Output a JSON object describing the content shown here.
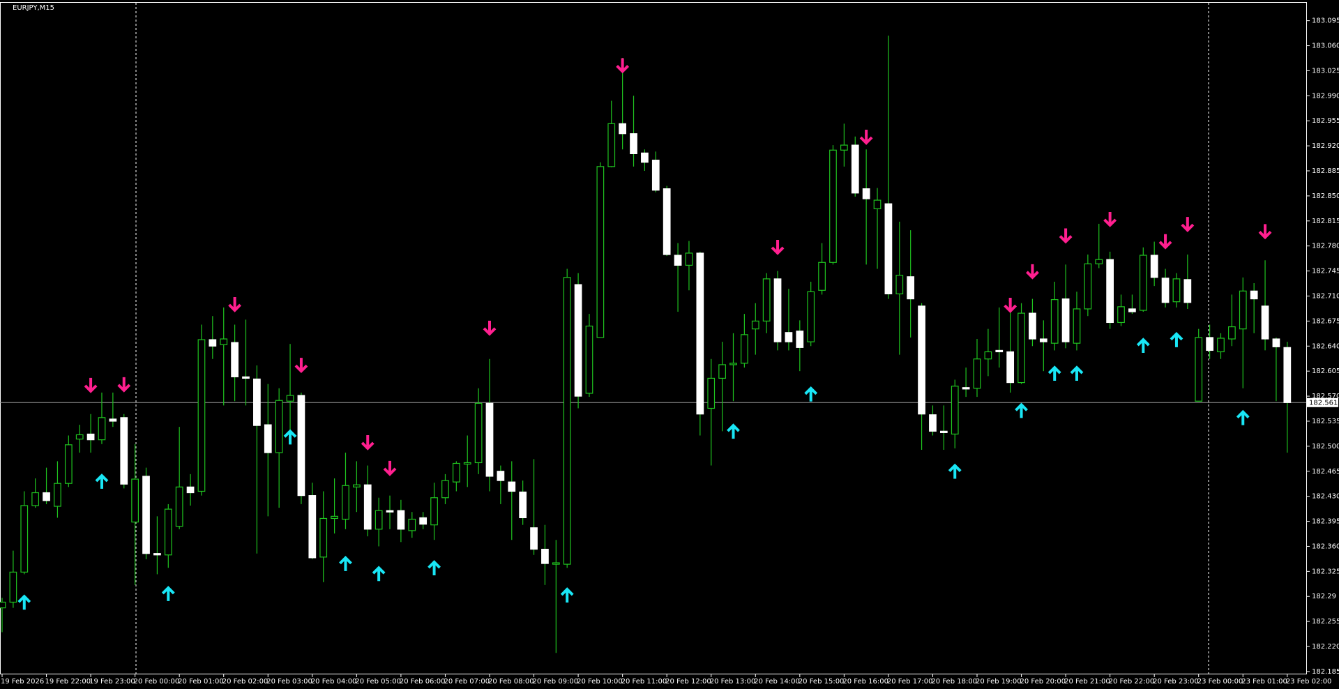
{
  "chart_data": {
    "type": "candlestick",
    "title": "EURJPY,M15",
    "categories": [
      "19 Feb 2026",
      null,
      null,
      null,
      "19 Feb 22:00",
      null,
      null,
      null,
      "19 Feb 23:00",
      null,
      null,
      null,
      "20 Feb 00:00",
      null,
      null,
      null,
      "20 Feb 01:00",
      null,
      null,
      null,
      "20 Feb 02:00",
      null,
      null,
      null,
      "20 Feb 03:00",
      null,
      null,
      null,
      "20 Feb 04:00",
      null,
      null,
      null,
      "20 Feb 05:00",
      null,
      null,
      null,
      "20 Feb 06:00",
      null,
      null,
      null,
      "20 Feb 07:00",
      null,
      null,
      null,
      "20 Feb 08:00",
      null,
      null,
      null,
      "20 Feb 09:00",
      null,
      null,
      null,
      "20 Feb 10:00",
      null,
      null,
      null,
      "20 Feb 11:00",
      null,
      null,
      null,
      "20 Feb 12:00",
      null,
      null,
      null,
      "20 Feb 13:00",
      null,
      null,
      null,
      "20 Feb 14:00",
      null,
      null,
      null,
      "20 Feb 15:00",
      null,
      null,
      null,
      "20 Feb 16:00",
      null,
      null,
      null,
      "20 Feb 17:00",
      null,
      null,
      null,
      "20 Feb 18:00",
      null,
      null,
      null,
      "20 Feb 19:00",
      null,
      null,
      null,
      "20 Feb 20:00",
      null,
      null,
      null,
      "20 Feb 21:00",
      null,
      null,
      null,
      "20 Feb 22:00",
      null,
      null,
      null,
      "20 Feb 23:00",
      null,
      null,
      null,
      "23 Feb 00:00",
      null,
      null,
      null,
      "23 Feb 01:00",
      null,
      null,
      null,
      "23 Feb 02:00"
    ],
    "open": [
      182.274,
      182.282,
      182.324,
      182.417,
      182.435,
      182.416,
      182.448,
      182.51,
      182.517,
      182.509,
      182.538,
      182.54,
      182.394,
      182.458,
      182.35,
      182.348,
      182.388,
      182.443,
      182.437,
      182.649,
      182.642,
      182.645,
      182.597,
      182.594,
      182.53,
      182.491,
      182.563,
      182.571,
      182.431,
      182.345,
      182.399,
      182.398,
      182.443,
      182.446,
      182.384,
      182.41,
      182.41,
      182.382,
      182.4,
      182.39,
      182.428,
      182.45,
      182.475,
      182.477,
      182.56,
      182.465,
      182.45,
      182.436,
      182.386,
      182.356,
      182.335,
      182.335,
      182.726,
      182.574,
      182.652,
      182.891,
      182.951,
      182.937,
      182.91,
      182.9,
      182.86,
      182.767,
      182.753,
      182.77,
      182.553,
      182.595,
      182.614,
      182.616,
      182.664,
      182.675,
      182.734,
      182.659,
      182.661,
      182.646,
      182.718,
      182.757,
      182.914,
      182.921,
      182.86,
      182.832,
      182.839,
      182.713,
      182.737,
      182.696,
      182.544,
      182.521,
      182.517,
      182.582,
      182.581,
      182.622,
      182.634,
      182.632,
      182.589,
      182.686,
      182.65,
      182.644,
      182.706,
      182.644,
      182.692,
      182.755,
      182.761,
      182.673,
      182.692,
      182.69,
      182.767,
      182.735,
      182.702,
      182.733,
      182.563,
      182.652,
      182.632,
      182.65,
      182.664,
      182.717,
      182.696,
      182.65,
      182.638
    ],
    "high": [
      182.288,
      182.354,
      182.437,
      182.455,
      182.47,
      182.479,
      182.515,
      182.53,
      182.545,
      182.575,
      182.575,
      182.545,
      182.503,
      182.47,
      182.402,
      182.419,
      182.527,
      182.461,
      182.67,
      182.682,
      182.694,
      182.67,
      182.677,
      182.613,
      182.587,
      182.581,
      182.643,
      182.575,
      182.449,
      182.437,
      182.455,
      182.491,
      182.479,
      182.473,
      182.428,
      182.431,
      182.425,
      182.408,
      182.408,
      182.449,
      182.461,
      182.479,
      182.515,
      182.581,
      182.622,
      182.473,
      182.479,
      182.452,
      182.482,
      182.39,
      182.369,
      182.748,
      182.742,
      182.685,
      182.897,
      182.983,
      183.043,
      182.99,
      182.915,
      182.912,
      182.864,
      182.784,
      182.787,
      182.772,
      182.622,
      182.646,
      182.658,
      182.685,
      182.7,
      182.742,
      182.745,
      182.72,
      182.676,
      182.73,
      182.784,
      182.921,
      182.951,
      182.933,
      182.915,
      182.861,
      183.074,
      182.814,
      182.802,
      182.7,
      182.557,
      182.557,
      182.593,
      182.61,
      182.65,
      182.664,
      182.694,
      182.694,
      182.7,
      182.706,
      182.676,
      182.73,
      182.754,
      182.716,
      182.768,
      182.811,
      182.772,
      182.712,
      182.712,
      182.778,
      182.786,
      182.748,
      182.742,
      182.768,
      182.664,
      182.67,
      182.658,
      182.712,
      182.736,
      182.728,
      182.76,
      182.652,
      182.646
    ],
    "low": [
      182.24,
      182.274,
      182.321,
      182.414,
      182.419,
      182.4,
      182.443,
      182.491,
      182.491,
      182.503,
      182.527,
      182.441,
      182.306,
      182.342,
      182.321,
      182.33,
      182.384,
      182.417,
      182.431,
      182.622,
      182.557,
      182.563,
      182.557,
      182.35,
      182.402,
      182.414,
      182.521,
      182.419,
      182.342,
      182.31,
      182.378,
      182.384,
      182.408,
      182.374,
      182.36,
      182.384,
      182.366,
      182.372,
      182.384,
      182.369,
      182.419,
      182.437,
      182.443,
      182.461,
      182.437,
      182.419,
      182.369,
      182.39,
      182.348,
      182.306,
      182.211,
      182.33,
      182.553,
      182.569,
      182.652,
      182.89,
      182.915,
      182.891,
      182.885,
      182.855,
      182.766,
      182.688,
      182.718,
      182.515,
      182.473,
      182.521,
      182.563,
      182.61,
      182.628,
      182.658,
      182.634,
      182.634,
      182.605,
      182.64,
      182.712,
      182.754,
      182.891,
      182.849,
      182.754,
      182.748,
      182.706,
      182.628,
      182.652,
      182.495,
      182.515,
      182.495,
      182.497,
      182.569,
      182.569,
      182.598,
      182.61,
      182.575,
      182.587,
      182.64,
      182.605,
      182.634,
      182.637,
      182.634,
      182.682,
      182.749,
      182.664,
      182.668,
      182.685,
      182.688,
      182.724,
      182.694,
      182.694,
      182.692,
      182.563,
      182.622,
      182.622,
      182.64,
      182.581,
      182.658,
      182.634,
      182.563,
      182.491
    ],
    "close": [
      182.282,
      182.324,
      182.417,
      182.435,
      182.424,
      182.448,
      182.502,
      182.516,
      182.509,
      182.54,
      182.535,
      182.447,
      182.454,
      182.35,
      182.348,
      182.412,
      182.443,
      182.435,
      182.649,
      182.64,
      182.65,
      182.597,
      182.595,
      182.529,
      182.491,
      182.564,
      182.571,
      182.431,
      182.344,
      182.399,
      182.402,
      182.445,
      182.446,
      182.384,
      182.41,
      182.408,
      182.384,
      182.398,
      182.391,
      182.428,
      182.452,
      182.476,
      182.477,
      182.56,
      182.458,
      182.452,
      182.437,
      182.4,
      182.356,
      182.336,
      182.337,
      182.736,
      182.57,
      182.668,
      182.891,
      182.951,
      182.937,
      182.909,
      182.897,
      182.858,
      182.768,
      182.753,
      182.77,
      182.545,
      182.595,
      182.614,
      182.616,
      182.656,
      182.675,
      182.734,
      182.646,
      182.646,
      182.638,
      182.716,
      182.757,
      182.914,
      182.921,
      182.854,
      182.846,
      182.844,
      182.713,
      182.739,
      182.706,
      182.545,
      182.521,
      182.519,
      182.584,
      182.58,
      182.622,
      182.632,
      182.632,
      182.589,
      182.686,
      182.65,
      182.646,
      182.705,
      182.646,
      182.692,
      182.755,
      182.761,
      182.673,
      182.695,
      182.688,
      182.767,
      182.736,
      182.701,
      182.734,
      182.701,
      182.652,
      182.634,
      182.651,
      182.667,
      182.717,
      182.706,
      182.65,
      182.639,
      182.561
    ],
    "sell_arrows": [
      null,
      null,
      null,
      null,
      null,
      null,
      null,
      null,
      182.577,
      null,
      null,
      182.578,
      null,
      null,
      null,
      null,
      null,
      null,
      null,
      null,
      null,
      182.69,
      null,
      null,
      null,
      null,
      null,
      182.605,
      null,
      null,
      null,
      null,
      null,
      182.497,
      null,
      182.461,
      null,
      null,
      null,
      null,
      null,
      null,
      null,
      null,
      182.657,
      null,
      null,
      null,
      null,
      null,
      null,
      null,
      null,
      null,
      null,
      null,
      183.024,
      null,
      null,
      null,
      null,
      null,
      null,
      null,
      null,
      null,
      null,
      null,
      null,
      null,
      182.77,
      null,
      null,
      null,
      null,
      null,
      null,
      null,
      182.924,
      null,
      null,
      null,
      null,
      null,
      null,
      null,
      null,
      null,
      null,
      null,
      null,
      182.689,
      null,
      182.736,
      null,
      null,
      182.786,
      null,
      null,
      null,
      182.809,
      null,
      null,
      null,
      null,
      182.778,
      null,
      182.802,
      null,
      null,
      null,
      null,
      null,
      null,
      182.792,
      null,
      null
    ],
    "buy_arrows": [
      null,
      null,
      182.29,
      null,
      null,
      null,
      null,
      null,
      null,
      182.459,
      null,
      null,
      null,
      null,
      null,
      182.302,
      null,
      null,
      null,
      null,
      null,
      null,
      null,
      null,
      null,
      null,
      182.521,
      null,
      null,
      null,
      null,
      182.344,
      null,
      null,
      182.33,
      null,
      null,
      null,
      null,
      182.338,
      null,
      null,
      null,
      null,
      null,
      null,
      null,
      null,
      null,
      null,
      null,
      182.3,
      null,
      null,
      null,
      null,
      null,
      null,
      null,
      null,
      null,
      null,
      null,
      null,
      null,
      null,
      182.529,
      null,
      null,
      null,
      null,
      null,
      null,
      182.581,
      null,
      null,
      null,
      null,
      null,
      null,
      null,
      null,
      null,
      null,
      null,
      null,
      182.473,
      null,
      null,
      null,
      null,
      null,
      182.558,
      null,
      null,
      182.61,
      null,
      182.61,
      null,
      null,
      null,
      null,
      null,
      182.649,
      null,
      null,
      182.657,
      null,
      null,
      null,
      null,
      null,
      182.548,
      null,
      null,
      null,
      null
    ],
    "bid": 182.561,
    "ylim": [
      182.182,
      183.12
    ],
    "yticks": [
      182.185,
      {
        "value": 182.22,
        "label": "182.220"
      },
      182.255,
      182.29,
      182.325,
      {
        "value": 182.36,
        "label": "182.360"
      },
      182.395,
      {
        "value": 182.43,
        "label": "182.430"
      },
      182.465,
      {
        "value": 182.5,
        "label": "182.500"
      },
      182.535,
      {
        "value": 182.57,
        "label": "182.570"
      },
      182.605,
      {
        "value": 182.64,
        "label": "182.640"
      },
      182.675,
      {
        "value": 182.71,
        "label": "182.710"
      },
      182.745,
      {
        "value": 182.78,
        "label": "182.780"
      },
      182.815,
      {
        "value": 182.85,
        "label": "182.850"
      },
      182.885,
      {
        "value": 182.92,
        "label": "182.920"
      },
      182.955,
      {
        "value": 182.99,
        "label": "182.990"
      },
      183.025,
      {
        "value": 183.06,
        "label": "183.060"
      },
      183.095
    ],
    "grid": false,
    "wick_color": "#1fc41f",
    "up_color": "#000000",
    "down_color": "#ffffff",
    "buy_color": "#19e6f5",
    "sell_color": "#ff1f8f",
    "bid_color": "#9a9a9a"
  }
}
